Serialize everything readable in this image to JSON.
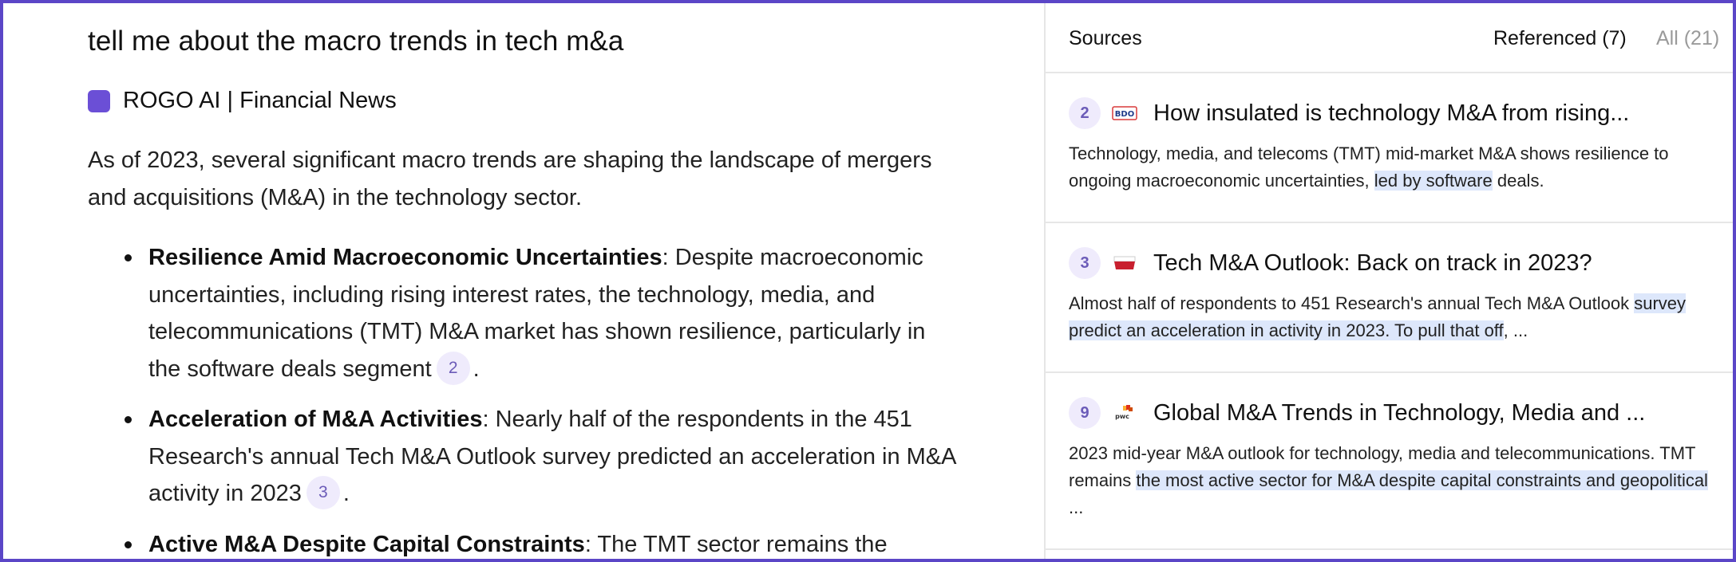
{
  "question": "tell me about the macro trends in tech m&a",
  "source_label": "ROGO AI | Financial News",
  "intro": "As of 2023, several significant macro trends are shaping the landscape of mergers and acquisitions (M&A) in the technology sector.",
  "bullets": [
    {
      "title": "Resilience Amid Macroeconomic Uncertainties",
      "text": ": Despite macroeconomic uncertainties, including rising interest rates, the technology, media, and telecommunications (TMT) M&A market has shown resilience, particularly in the software deals segment",
      "cite": "2",
      "end": "."
    },
    {
      "title": "Acceleration of M&A Activities",
      "text": ": Nearly half of the respondents in the 451 Research's annual Tech M&A Outlook survey predicted an acceleration in M&A activity in 2023",
      "cite": "3",
      "end": "."
    },
    {
      "title": "Active M&A Despite Capital Constraints",
      "text": ": The TMT sector remains the"
    }
  ],
  "sources_panel": {
    "title": "Sources",
    "tab_referenced": "Referenced (7)",
    "tab_all": "All (21)",
    "cards": [
      {
        "num": "2",
        "favicon": "bdo-logo-icon",
        "title": "How insulated is technology M&A from rising...",
        "snippet_before": "Technology, media, and telecoms (TMT) mid-market M&A shows resilience to ongoing macroeconomic uncertainties, ",
        "snippet_highlight": "led by software",
        "snippet_after": " deals."
      },
      {
        "num": "3",
        "favicon": "spglobal-logo-icon",
        "title": "Tech M&A Outlook: Back on track in 2023?",
        "snippet_before": "Almost half of respondents to 451 Research's annual Tech M&A Outlook ",
        "snippet_highlight": "survey predict an acceleration in activity in 2023. To pull that off",
        "snippet_after": ", ..."
      },
      {
        "num": "9",
        "favicon": "pwc-logo-icon",
        "title": "Global M&A Trends in Technology, Media and ...",
        "snippet_before": "2023 mid-year M&A outlook for technology, media and telecommunications. TMT remains ",
        "snippet_highlight": "the most active sector for M&A despite capital constraints and geopolitical",
        "snippet_after": " ..."
      }
    ]
  },
  "colors": {
    "accent": "#5b46c7",
    "badge_bg": "#efebfc",
    "badge_text": "#6b5bb8",
    "highlight": "#dde7fb"
  }
}
